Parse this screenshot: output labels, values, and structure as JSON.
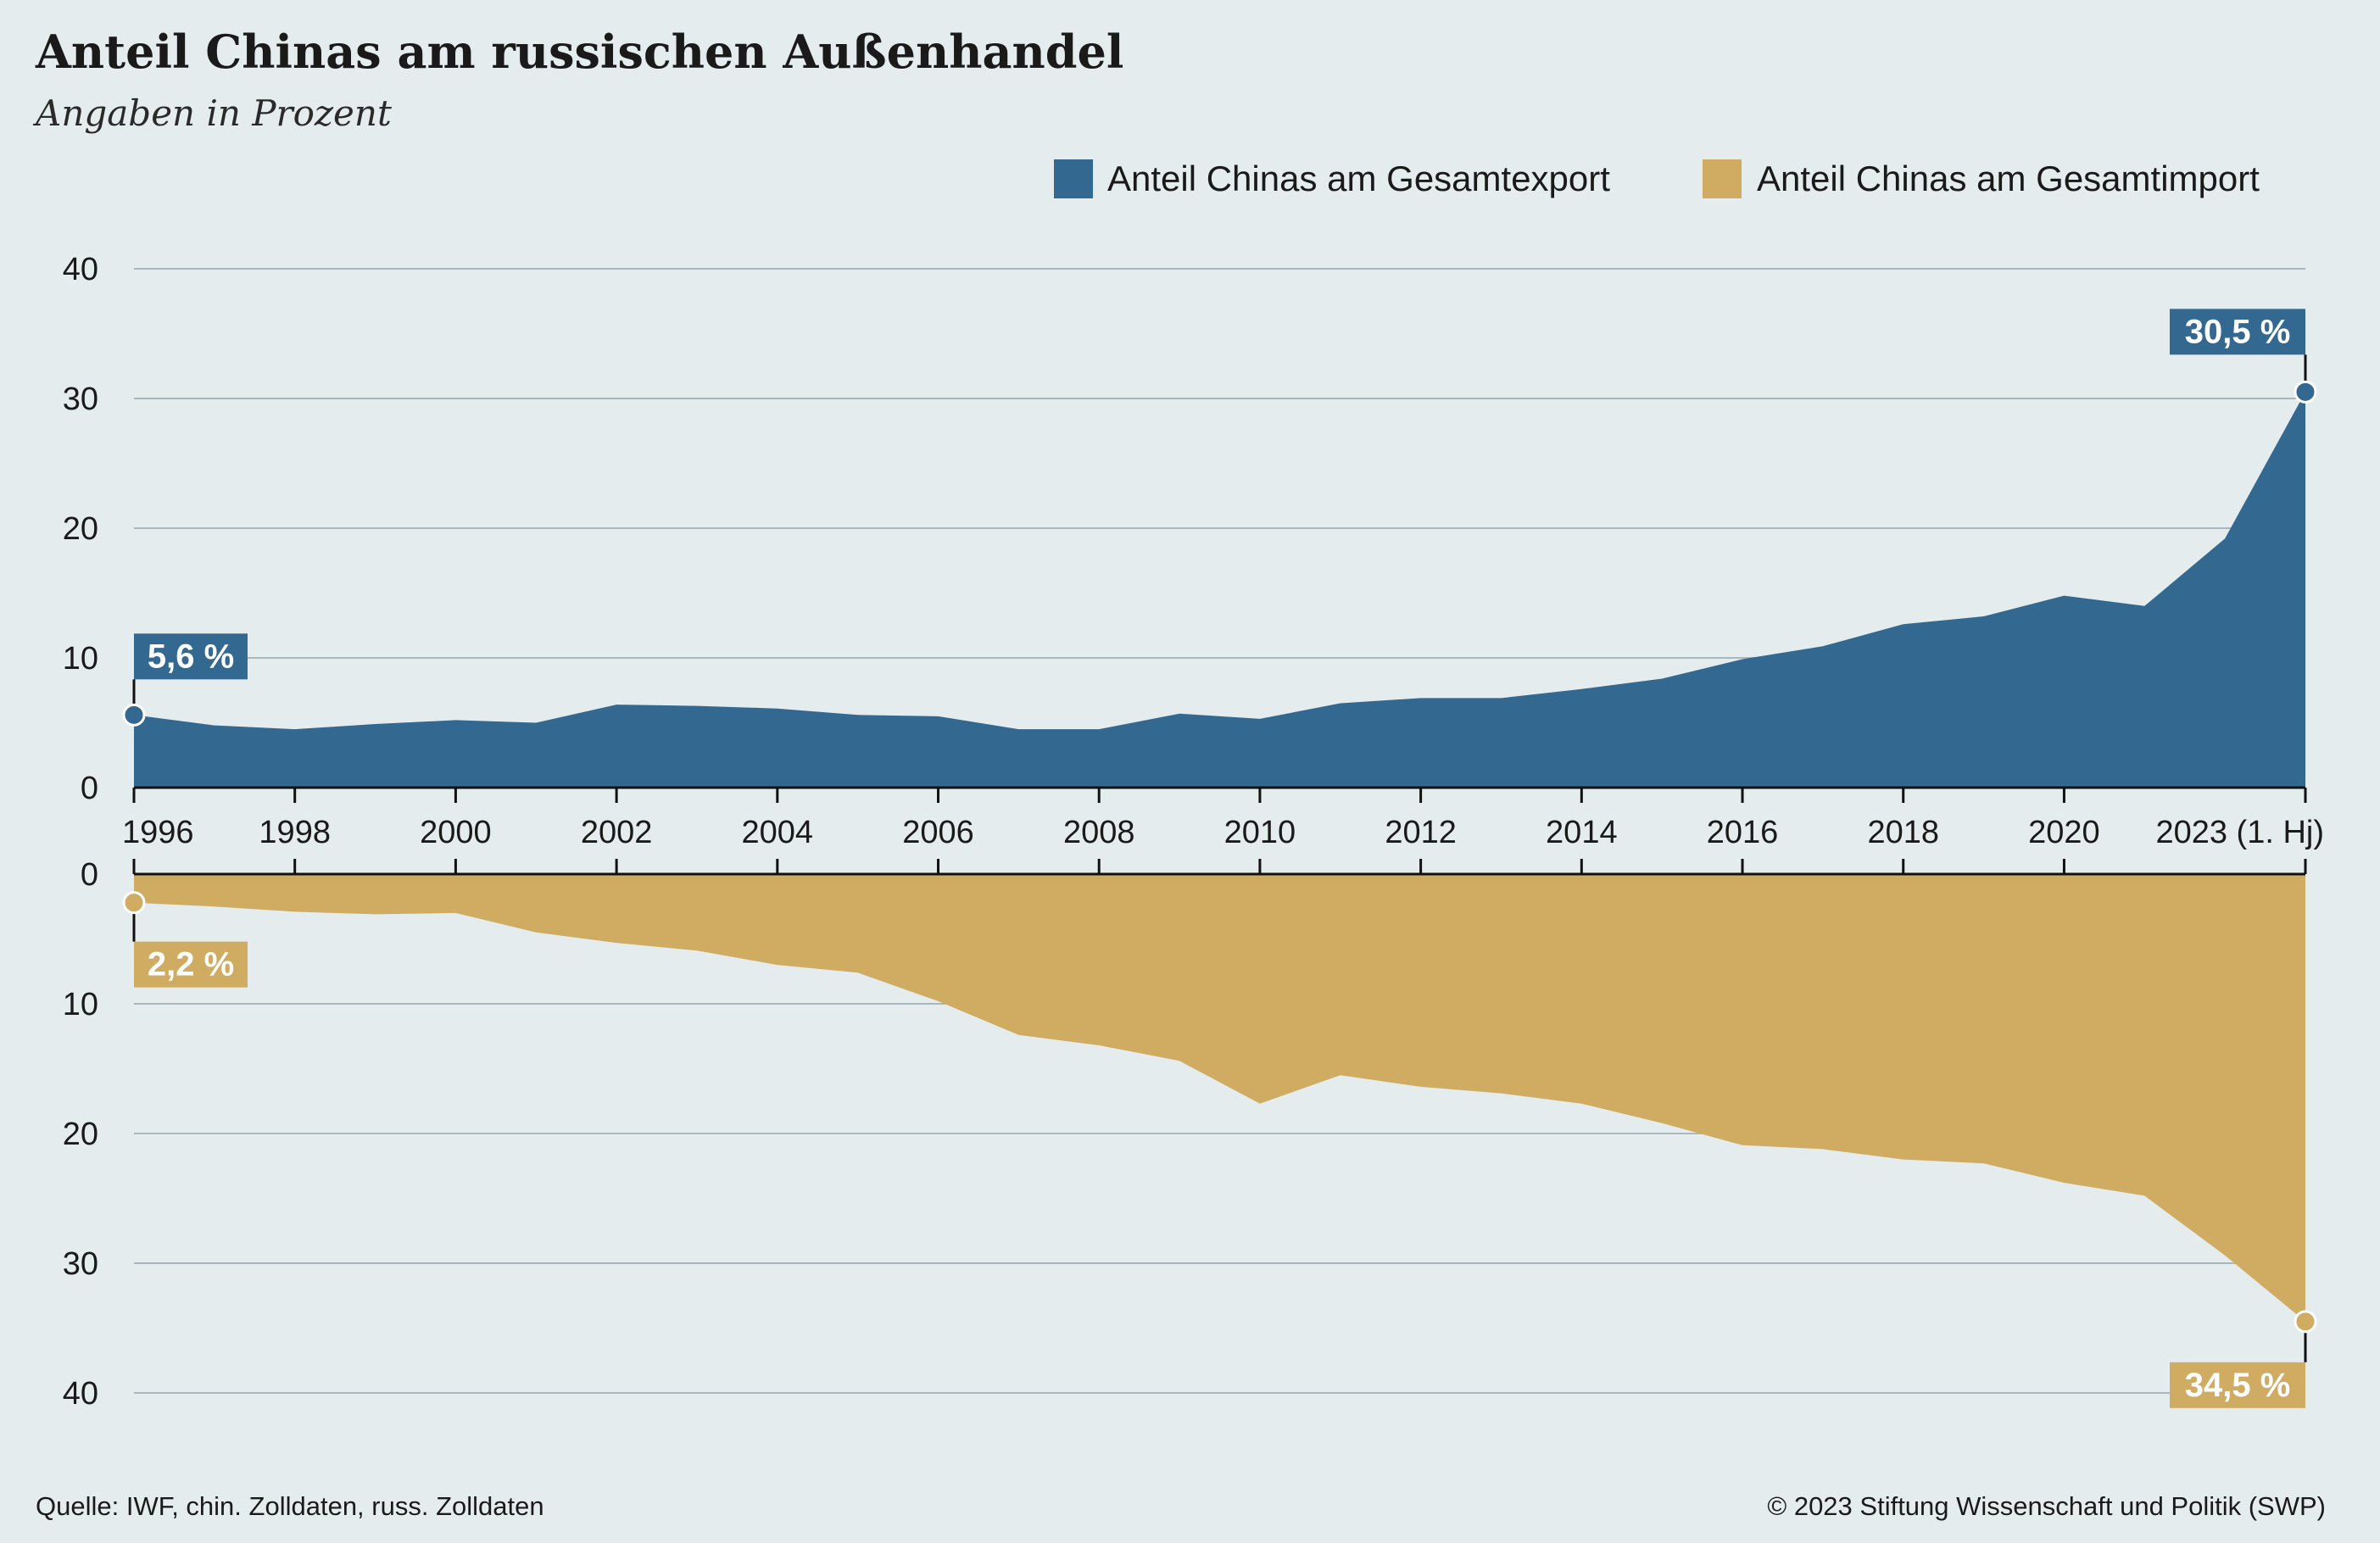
{
  "header": {
    "title": "Anteil Chinas am russischen Außenhandel",
    "subtitle": "Angaben in Prozent"
  },
  "footer": {
    "source": "Quelle: IWF, chin. Zolldaten, russ. Zolldaten",
    "copyright": "© 2023 Stiftung Wissenschaft und Politik (SWP)"
  },
  "colors": {
    "export": "#336891",
    "import": "#d0ab62",
    "background": "#e4ecee"
  },
  "chart_data": {
    "type": "area",
    "x": [
      1996,
      1997,
      1998,
      1999,
      2000,
      2001,
      2002,
      2003,
      2004,
      2005,
      2006,
      2007,
      2008,
      2009,
      2010,
      2011,
      2012,
      2013,
      2014,
      2015,
      2016,
      2017,
      2018,
      2019,
      2020,
      2021,
      2022,
      2023
    ],
    "x_tick_labels": [
      "1996",
      "1998",
      "2000",
      "2002",
      "2004",
      "2006",
      "2008",
      "2010",
      "2012",
      "2014",
      "2016",
      "2018",
      "2020",
      "2023 (1. Hj)"
    ],
    "y_ticks": [
      "0",
      "10",
      "20",
      "30",
      "40"
    ],
    "ylim": [
      0,
      40
    ],
    "legend_placement": "top-right",
    "grid": true,
    "series": [
      {
        "name": "Anteil Chinas am Gesamtexport",
        "color": "#336891",
        "panel": "top",
        "values": [
          5.6,
          4.8,
          4.5,
          4.9,
          5.2,
          5.0,
          6.4,
          6.3,
          6.1,
          5.6,
          5.5,
          4.5,
          4.5,
          5.7,
          5.3,
          6.5,
          6.9,
          6.9,
          7.6,
          8.4,
          9.9,
          10.9,
          12.6,
          13.2,
          14.8,
          14.0,
          19.2,
          30.5
        ],
        "callouts": [
          {
            "index": 0,
            "label": "5,6 %"
          },
          {
            "index": 27,
            "label": "30,5 %"
          }
        ]
      },
      {
        "name": "Anteil Chinas am Gesamtimport",
        "color": "#d0ab62",
        "panel": "bottom",
        "values": [
          2.2,
          2.5,
          2.9,
          3.1,
          3.0,
          4.5,
          5.3,
          5.9,
          7.0,
          7.6,
          9.8,
          12.4,
          13.2,
          14.4,
          17.7,
          15.5,
          16.4,
          16.9,
          17.7,
          19.2,
          20.9,
          21.2,
          22.0,
          22.3,
          23.8,
          24.8,
          29.4,
          34.5
        ],
        "callouts": [
          {
            "index": 0,
            "label": "2,2 %"
          },
          {
            "index": 27,
            "label": "34,5 %"
          }
        ]
      }
    ]
  }
}
